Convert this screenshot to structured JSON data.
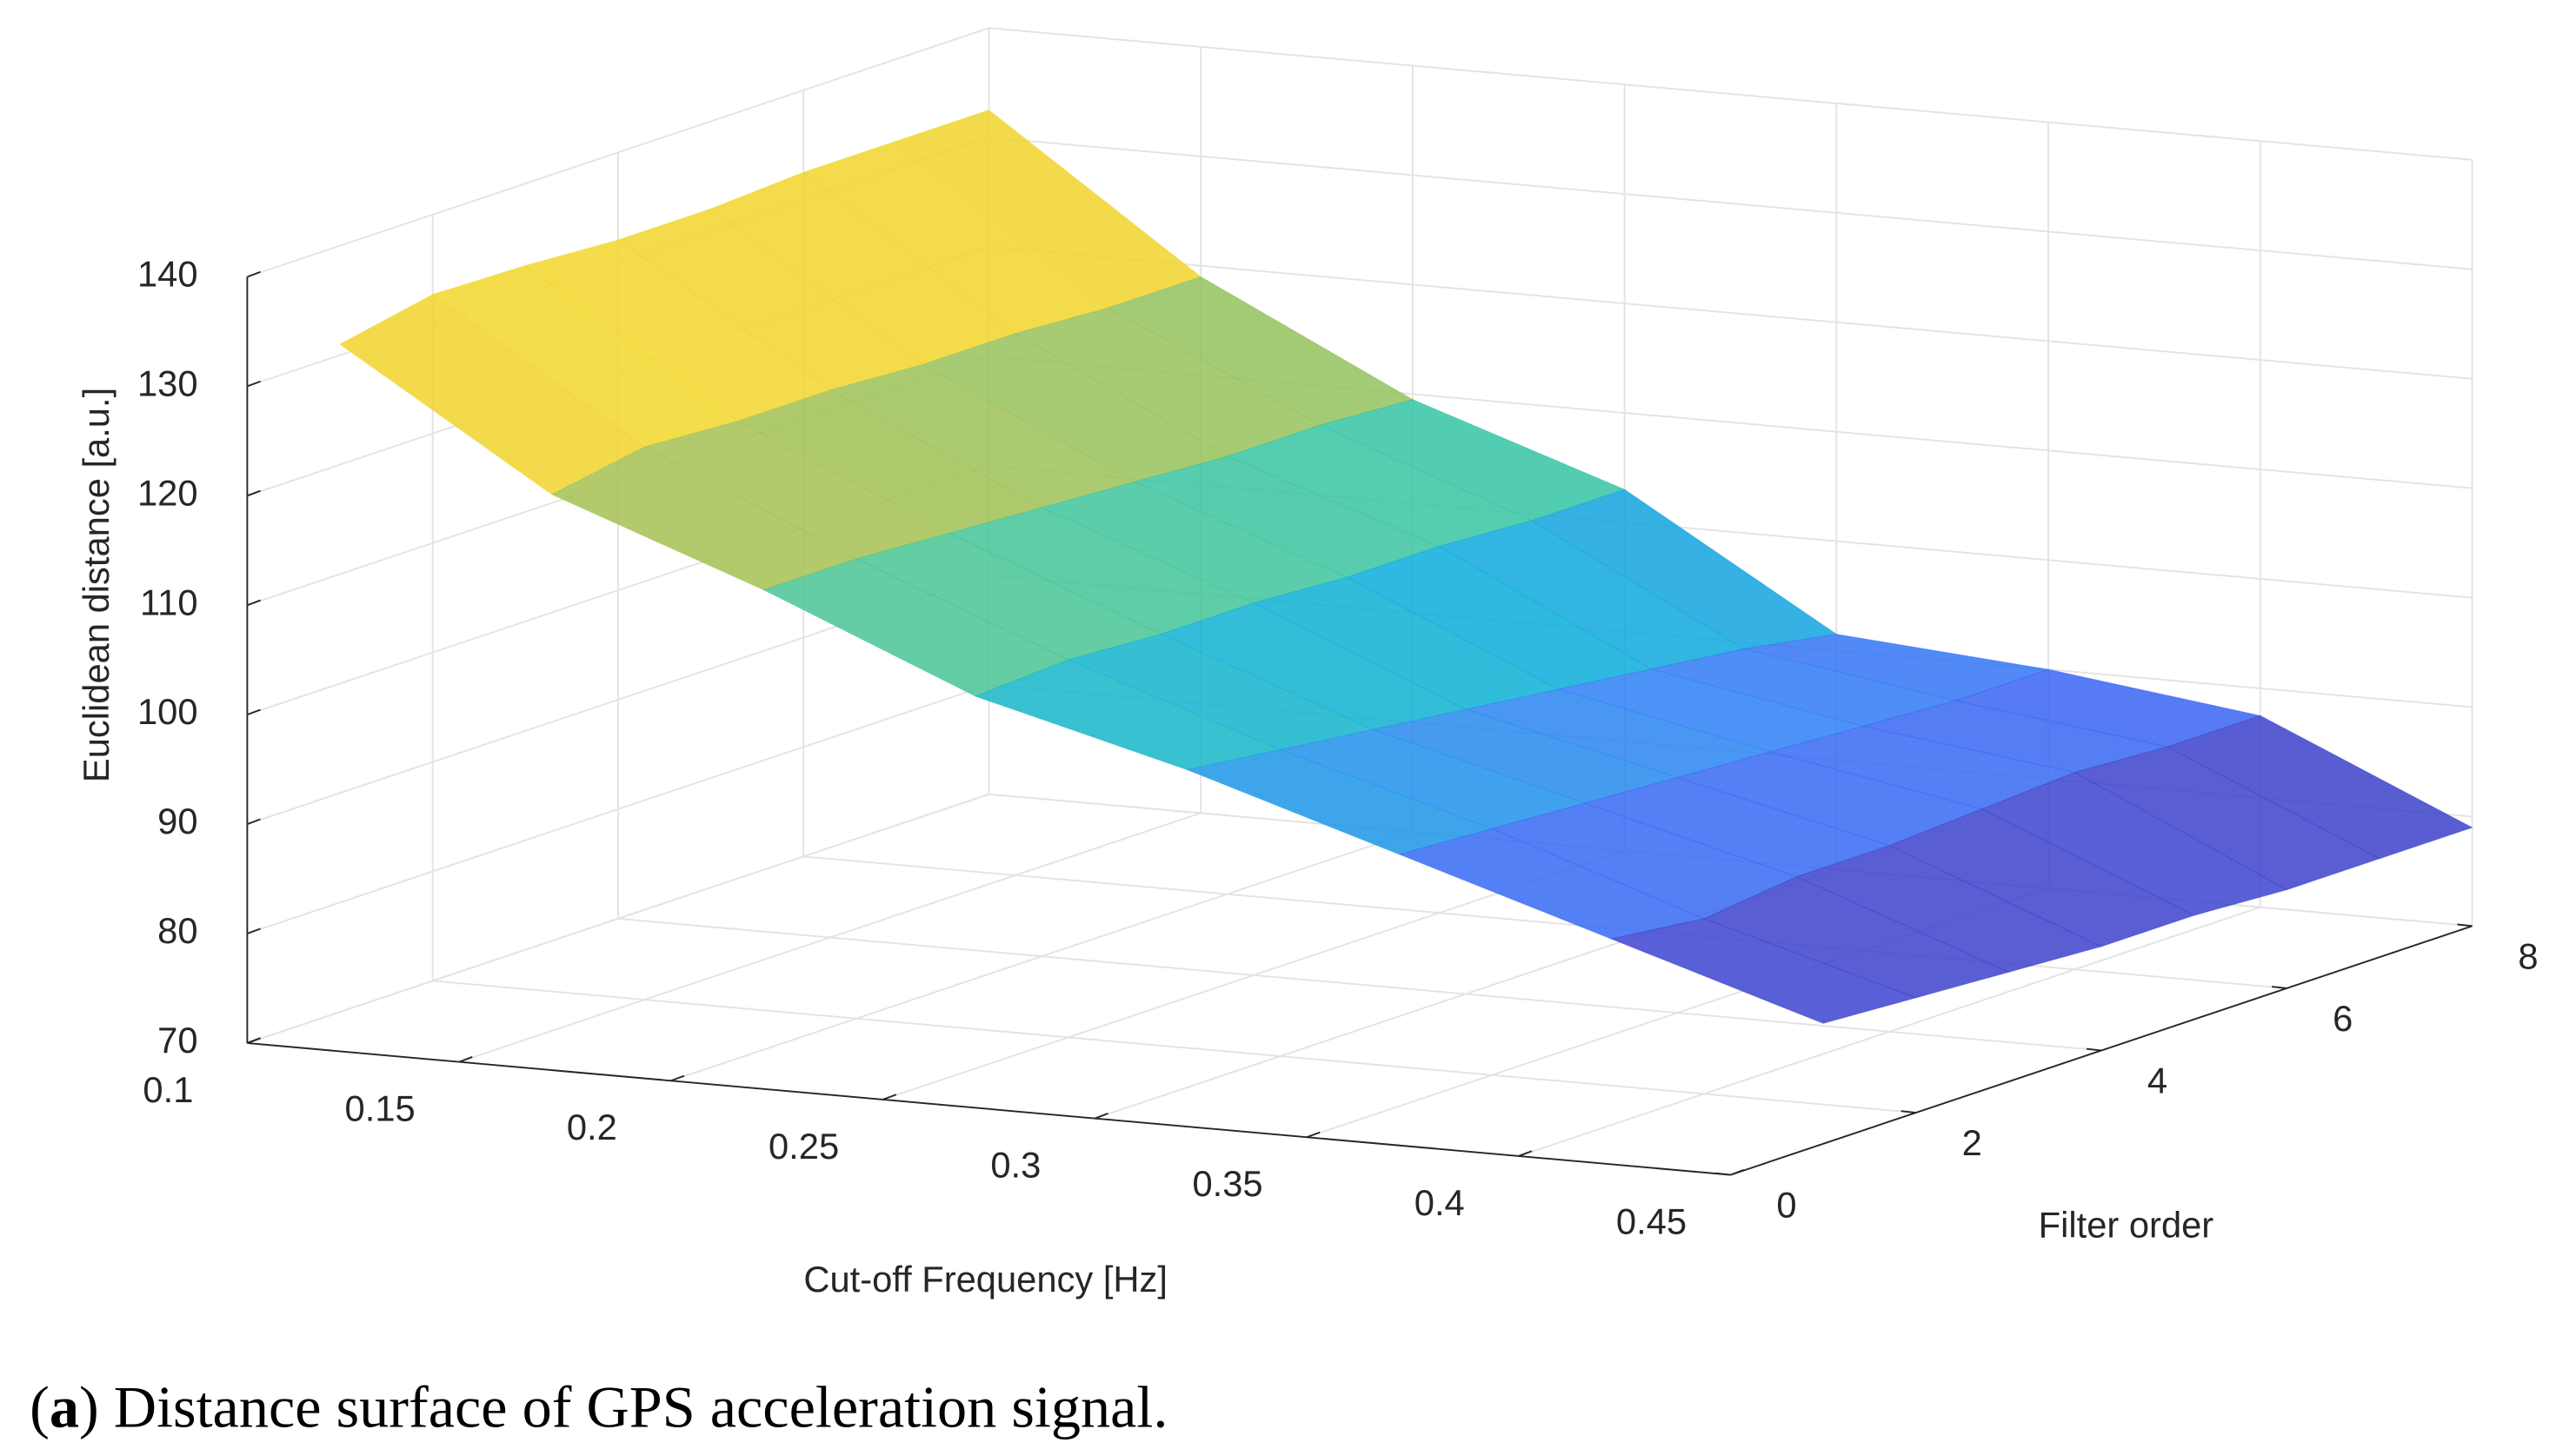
{
  "chart_data": {
    "type": "surface",
    "x_label": "Cut-off Frequency [Hz]",
    "y_label": "Filter order",
    "z_label": "Euclidean distance [a.u.]",
    "x": [
      0.1,
      0.15,
      0.2,
      0.25,
      0.3,
      0.35,
      0.4,
      0.45
    ],
    "y": [
      1,
      2,
      3,
      4,
      5,
      6,
      7,
      8
    ],
    "z": [
      [
        131,
        119,
        112,
        104,
        99,
        93,
        87,
        81
      ],
      [
        132.7,
        120.5,
        112,
        104.5,
        98,
        92.5,
        86,
        80.5
      ],
      [
        132.5,
        120,
        111.5,
        104,
        97,
        92,
        87,
        80
      ],
      [
        132,
        120,
        111,
        104,
        96,
        91.5,
        87,
        79.5
      ],
      [
        132,
        119.5,
        110.5,
        103.5,
        95,
        91,
        87.5,
        79.5
      ],
      [
        132.5,
        119.5,
        110,
        103.5,
        94,
        90.5,
        88,
        79
      ],
      [
        132.5,
        119,
        110,
        103,
        93,
        90,
        87.5,
        79
      ],
      [
        132.5,
        119,
        109.5,
        103,
        91.5,
        90,
        87.5,
        79
      ]
    ],
    "xlim": [
      0.1,
      0.45
    ],
    "xticks": [
      0.1,
      0.15,
      0.2,
      0.25,
      0.3,
      0.35,
      0.4,
      0.45
    ],
    "ylim": [
      0,
      8
    ],
    "yticks": [
      0,
      2,
      4,
      6,
      8
    ],
    "zlim": [
      70,
      140
    ],
    "zticks": [
      70,
      80,
      90,
      100,
      110,
      120,
      130,
      140
    ],
    "grid": true,
    "face_alpha": 0.85,
    "colormap": [
      "#352a87",
      "#3f4ff0",
      "#2f7ef5",
      "#0aaed9",
      "#2ec4a8",
      "#7fc46a",
      "#c9be3a",
      "#f2d52c",
      "#f9fb0e"
    ]
  },
  "caption": {
    "prefix": "(",
    "label": "a",
    "text": ") Distance surface of GPS acceleration signal."
  }
}
